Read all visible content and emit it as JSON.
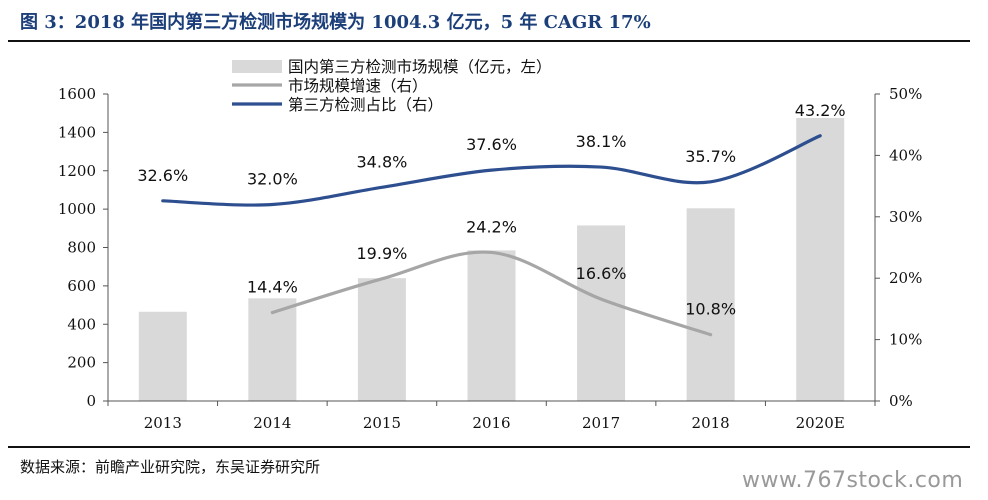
{
  "title": "图 3：2018 年国内第三方检测市场规模为 1004.3 亿元，5 年 CAGR 17%",
  "source": "数据来源：前瞻产业研究院，东吴证券研究所",
  "watermark": "www.767stock.com",
  "colors": {
    "bar": "#d9d9d9",
    "growth_line": "#a6a6a6",
    "share_line": "#2e4f8f",
    "title": "#1c3f7a"
  },
  "chart_data": {
    "type": "bar",
    "categories": [
      "2013",
      "2014",
      "2015",
      "2016",
      "2017",
      "2018",
      "2020E"
    ],
    "series": [
      {
        "name": "国内第三方检测市场规模（亿元，左）",
        "type": "bar",
        "axis": "left",
        "values": [
          465,
          535,
          640,
          785,
          915,
          1004.3,
          1475
        ]
      },
      {
        "name": "市场规模增速（右）",
        "type": "line",
        "axis": "right",
        "values": [
          null,
          14.4,
          19.9,
          24.2,
          16.6,
          10.8,
          null
        ],
        "labels": [
          null,
          "14.4%",
          "19.9%",
          "24.2%",
          "16.6%",
          "10.8%",
          null
        ]
      },
      {
        "name": "第三方检测占比（右）",
        "type": "line",
        "axis": "right",
        "values": [
          32.6,
          32.0,
          34.8,
          37.6,
          38.1,
          35.7,
          43.2
        ],
        "labels": [
          "32.6%",
          "32.0%",
          "34.8%",
          "37.6%",
          "38.1%",
          "35.7%",
          "43.2%"
        ]
      }
    ],
    "y_left": {
      "min": 0,
      "max": 1600,
      "ticks": [
        "0",
        "200",
        "400",
        "600",
        "800",
        "1000",
        "1200",
        "1400",
        "1600"
      ]
    },
    "y_right": {
      "min": 0,
      "max": 50,
      "ticks": [
        "0%",
        "10%",
        "20%",
        "30%",
        "40%",
        "50%"
      ]
    },
    "grid": false,
    "legend_position": "top-center"
  }
}
